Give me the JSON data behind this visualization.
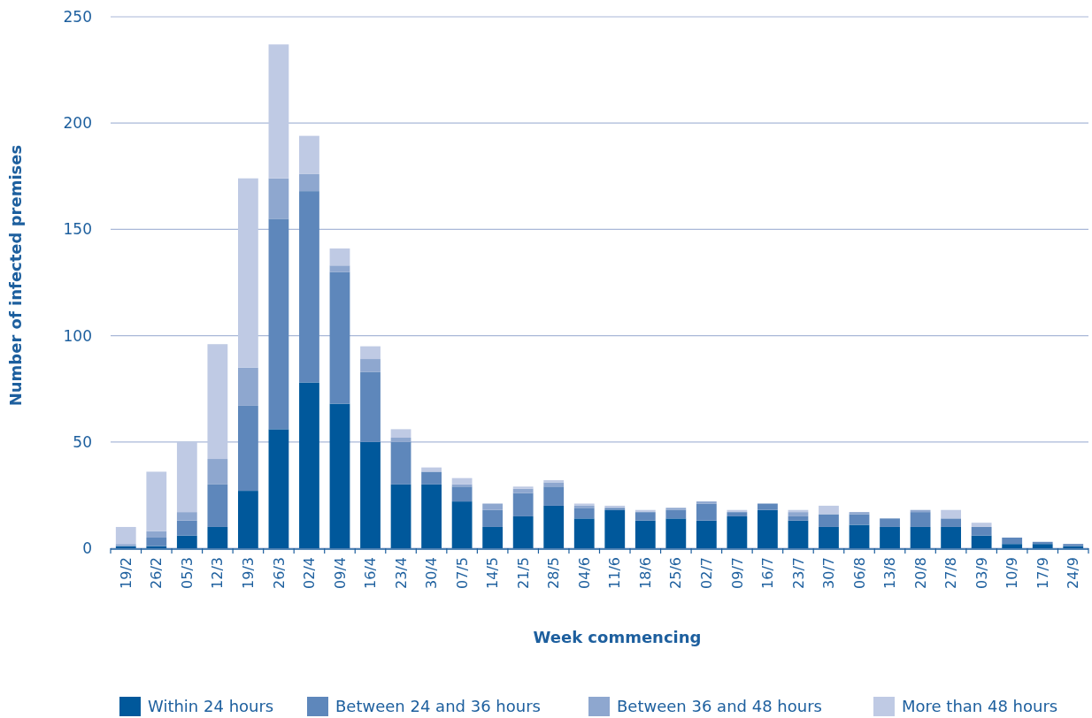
{
  "chart_data": {
    "type": "bar",
    "stacked": true,
    "xlabel": "Week commencing",
    "ylabel": "Number of infected premises",
    "categories": [
      "19/2",
      "26/2",
      "05/3",
      "12/3",
      "19/3",
      "26/3",
      "02/4",
      "09/4",
      "16/4",
      "23/4",
      "30/4",
      "07/5",
      "14/5",
      "21/5",
      "28/5",
      "04/6",
      "11/6",
      "18/6",
      "25/6",
      "02/7",
      "09/7",
      "16/7",
      "23/7",
      "30/7",
      "06/8",
      "13/8",
      "20/8",
      "27/8",
      "03/9",
      "10/9",
      "17/9",
      "24/9"
    ],
    "series": [
      {
        "name": "Within 24 hours",
        "color": "#00589b",
        "values": [
          1,
          1,
          6,
          10,
          27,
          56,
          78,
          68,
          50,
          30,
          30,
          22,
          10,
          15,
          20,
          14,
          18,
          13,
          14,
          13,
          15,
          18,
          13,
          10,
          11,
          10,
          10,
          10,
          6,
          2,
          2,
          1
        ]
      },
      {
        "name": "Between 24 and 36 hours",
        "color": "#5e87bb",
        "values": [
          0,
          4,
          7,
          20,
          40,
          99,
          90,
          62,
          33,
          20,
          6,
          7,
          8,
          11,
          9,
          5,
          1,
          4,
          4,
          8,
          2,
          3,
          2,
          6,
          5,
          4,
          7,
          4,
          4,
          3,
          1,
          1
        ]
      },
      {
        "name": "Between 36 and 48 hours",
        "color": "#8ea7cf",
        "values": [
          1,
          3,
          4,
          12,
          18,
          19,
          8,
          3,
          6,
          2,
          0,
          1,
          3,
          2,
          2,
          1,
          0,
          0,
          1,
          1,
          0,
          0,
          2,
          0,
          1,
          0,
          1,
          0,
          0,
          0,
          0,
          0
        ]
      },
      {
        "name": "More than 48 hours",
        "color": "#bfcae4",
        "values": [
          8,
          28,
          33,
          54,
          89,
          63,
          18,
          8,
          6,
          4,
          2,
          3,
          0,
          1,
          1,
          1,
          1,
          1,
          0,
          0,
          1,
          0,
          1,
          4,
          0,
          0,
          0,
          4,
          2,
          0,
          0,
          0
        ]
      }
    ],
    "ylim": [
      0,
      250
    ],
    "yticks": [
      0,
      50,
      100,
      150,
      200,
      250
    ],
    "grid": "y",
    "legend": "bottom"
  }
}
